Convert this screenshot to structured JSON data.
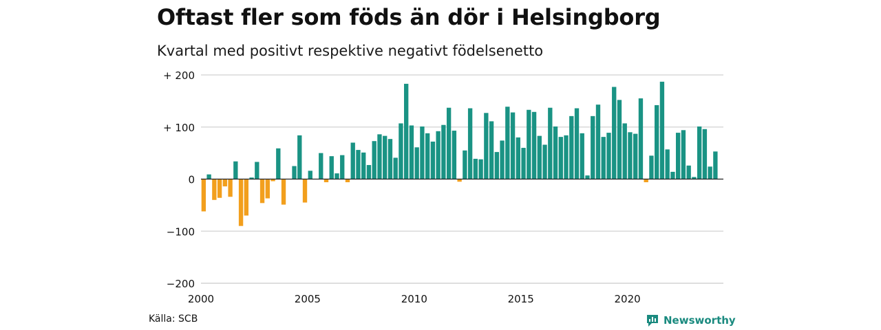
{
  "title": "Oftast fler som föds än dör i Helsingborg",
  "subtitle": "Kvartal med positivt respektive negativt födelsenetto",
  "source": "Källa: SCB",
  "brand": {
    "name": "Newsworthy",
    "icon": "newsworthy-logo-icon"
  },
  "colors": {
    "positive": "#1a9384",
    "negative": "#f29f1d",
    "grid": "#d9d9d9",
    "zero_line": "#222222"
  },
  "chart_data": {
    "type": "bar",
    "title": "Oftast fler som föds än dör i Helsingborg",
    "subtitle": "Kvartal med positivt respektive negativt födelsenetto",
    "x_start": 2000,
    "x_step": 0.25,
    "xlim": [
      2000,
      2024.5
    ],
    "ylim": [
      -200,
      200
    ],
    "x_ticks": [
      2000,
      2005,
      2010,
      2015,
      2020
    ],
    "y_ticks": [
      {
        "value": 200,
        "label": "+ 200"
      },
      {
        "value": 100,
        "label": "+ 100"
      },
      {
        "value": 0,
        "label": "0"
      },
      {
        "value": -100,
        "label": "−100"
      },
      {
        "value": -200,
        "label": "−200"
      }
    ],
    "grid": true,
    "values": [
      -62,
      9,
      -40,
      -36,
      -14,
      -34,
      34,
      -90,
      -70,
      3,
      33,
      -46,
      -37,
      -4,
      59,
      -49,
      0,
      25,
      84,
      -45,
      16,
      0,
      50,
      -6,
      44,
      11,
      46,
      -6,
      70,
      56,
      51,
      27,
      73,
      86,
      83,
      77,
      41,
      107,
      183,
      103,
      61,
      101,
      88,
      72,
      92,
      104,
      137,
      93,
      -5,
      55,
      136,
      39,
      38,
      127,
      111,
      52,
      74,
      139,
      128,
      80,
      60,
      133,
      129,
      83,
      66,
      137,
      101,
      81,
      84,
      121,
      136,
      88,
      7,
      121,
      143,
      81,
      89,
      177,
      152,
      107,
      90,
      87,
      155,
      -6,
      45,
      142,
      187,
      57,
      14,
      89,
      94,
      26,
      4,
      101,
      96,
      24,
      53
    ]
  }
}
